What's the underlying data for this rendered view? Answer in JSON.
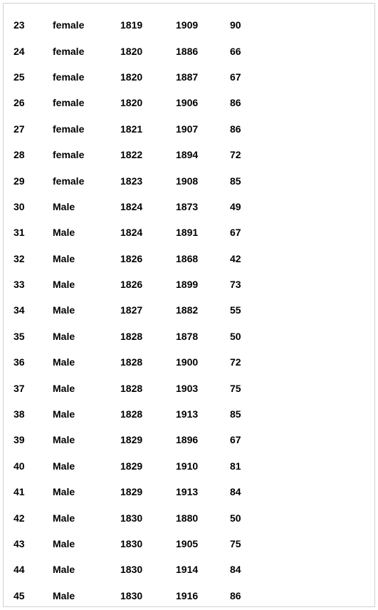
{
  "table": {
    "rows": [
      {
        "index": "23",
        "gender": "female",
        "year1": "1819",
        "year2": "1909",
        "age": "90"
      },
      {
        "index": "24",
        "gender": "female",
        "year1": "1820",
        "year2": "1886",
        "age": "66"
      },
      {
        "index": "25",
        "gender": "female",
        "year1": "1820",
        "year2": "1887",
        "age": "67"
      },
      {
        "index": "26",
        "gender": "female",
        "year1": "1820",
        "year2": "1906",
        "age": "86"
      },
      {
        "index": "27",
        "gender": "female",
        "year1": "1821",
        "year2": "1907",
        "age": "86"
      },
      {
        "index": "28",
        "gender": "female",
        "year1": "1822",
        "year2": "1894",
        "age": "72"
      },
      {
        "index": "29",
        "gender": "female",
        "year1": "1823",
        "year2": "1908",
        "age": "85"
      },
      {
        "index": "30",
        "gender": "Male",
        "year1": "1824",
        "year2": "1873",
        "age": "49"
      },
      {
        "index": "31",
        "gender": "Male",
        "year1": "1824",
        "year2": "1891",
        "age": "67"
      },
      {
        "index": "32",
        "gender": "Male",
        "year1": "1826",
        "year2": "1868",
        "age": "42"
      },
      {
        "index": "33",
        "gender": "Male",
        "year1": "1826",
        "year2": "1899",
        "age": "73"
      },
      {
        "index": "34",
        "gender": "Male",
        "year1": "1827",
        "year2": "1882",
        "age": "55"
      },
      {
        "index": "35",
        "gender": "Male",
        "year1": "1828",
        "year2": "1878",
        "age": "50"
      },
      {
        "index": "36",
        "gender": "Male",
        "year1": "1828",
        "year2": "1900",
        "age": "72"
      },
      {
        "index": "37",
        "gender": "Male",
        "year1": "1828",
        "year2": "1903",
        "age": "75"
      },
      {
        "index": "38",
        "gender": "Male",
        "year1": "1828",
        "year2": "1913",
        "age": "85"
      },
      {
        "index": "39",
        "gender": "Male",
        "year1": "1829",
        "year2": "1896",
        "age": "67"
      },
      {
        "index": "40",
        "gender": "Male",
        "year1": "1829",
        "year2": "1910",
        "age": "81"
      },
      {
        "index": "41",
        "gender": "Male",
        "year1": "1829",
        "year2": "1913",
        "age": "84"
      },
      {
        "index": "42",
        "gender": "Male",
        "year1": "1830",
        "year2": "1880",
        "age": "50"
      },
      {
        "index": "43",
        "gender": "Male",
        "year1": "1830",
        "year2": "1905",
        "age": "75"
      },
      {
        "index": "44",
        "gender": "Male",
        "year1": "1830",
        "year2": "1914",
        "age": "84"
      },
      {
        "index": "45",
        "gender": "Male",
        "year1": "1830",
        "year2": "1916",
        "age": "86"
      }
    ],
    "text_color": "#000000",
    "background_color": "#ffffff",
    "border_color": "#d0d0d0",
    "font_size": 14,
    "font_weight": "bold"
  }
}
